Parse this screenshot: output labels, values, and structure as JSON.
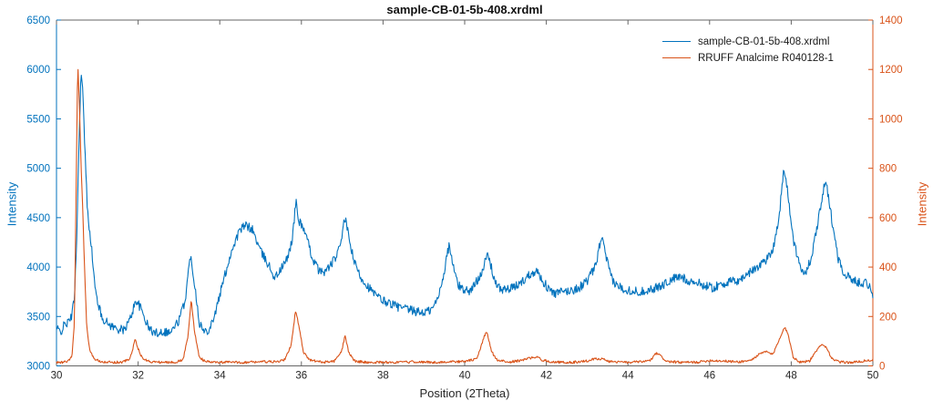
{
  "chart_data": {
    "type": "line",
    "title": "sample-CB-01-5b-408.xrdml",
    "xlabel": "Position (2Theta)",
    "grid": false,
    "x_range": [
      30,
      50
    ],
    "x_ticks": [
      30,
      32,
      34,
      36,
      38,
      40,
      42,
      44,
      46,
      48,
      50
    ],
    "left_axis": {
      "label": "Intensity",
      "range": [
        3000,
        6500
      ],
      "ticks": [
        3000,
        3500,
        4000,
        4500,
        5000,
        5500,
        6000,
        6500
      ],
      "color": "#0072BD"
    },
    "right_axis": {
      "label": "Intensity",
      "range": [
        0,
        1400
      ],
      "ticks": [
        0,
        200,
        400,
        600,
        800,
        1000,
        1200,
        1400
      ],
      "color": "#D95319"
    },
    "legend": {
      "position": "top-right-inside",
      "border": "none"
    },
    "series": [
      {
        "name": "sample-CB-01-5b-408.xrdml",
        "axis": "left",
        "color": "#0072BD",
        "noise": 46,
        "seed": 42,
        "points": [
          [
            30.0,
            3380
          ],
          [
            30.1,
            3340
          ],
          [
            30.2,
            3420
          ],
          [
            30.3,
            3440
          ],
          [
            30.38,
            3520
          ],
          [
            30.44,
            3700
          ],
          [
            30.5,
            4350
          ],
          [
            30.55,
            5250
          ],
          [
            30.6,
            5970
          ],
          [
            30.64,
            5800
          ],
          [
            30.7,
            5150
          ],
          [
            30.76,
            4560
          ],
          [
            30.84,
            4280
          ],
          [
            30.95,
            3760
          ],
          [
            31.1,
            3500
          ],
          [
            31.25,
            3430
          ],
          [
            31.45,
            3380
          ],
          [
            31.65,
            3360
          ],
          [
            31.8,
            3470
          ],
          [
            31.95,
            3670
          ],
          [
            32.1,
            3550
          ],
          [
            32.25,
            3390
          ],
          [
            32.4,
            3330
          ],
          [
            32.6,
            3350
          ],
          [
            32.8,
            3340
          ],
          [
            33.0,
            3460
          ],
          [
            33.15,
            3660
          ],
          [
            33.28,
            4120
          ],
          [
            33.38,
            3850
          ],
          [
            33.5,
            3440
          ],
          [
            33.62,
            3340
          ],
          [
            33.75,
            3380
          ],
          [
            33.9,
            3550
          ],
          [
            34.1,
            3880
          ],
          [
            34.3,
            4180
          ],
          [
            34.5,
            4380
          ],
          [
            34.65,
            4420
          ],
          [
            34.8,
            4380
          ],
          [
            35.0,
            4160
          ],
          [
            35.2,
            4020
          ],
          [
            35.35,
            3890
          ],
          [
            35.5,
            3980
          ],
          [
            35.65,
            4080
          ],
          [
            35.78,
            4290
          ],
          [
            35.87,
            4680
          ],
          [
            35.93,
            4460
          ],
          [
            36.02,
            4430
          ],
          [
            36.12,
            4300
          ],
          [
            36.28,
            4080
          ],
          [
            36.45,
            3950
          ],
          [
            36.6,
            3960
          ],
          [
            36.75,
            4040
          ],
          [
            36.9,
            4140
          ],
          [
            37.0,
            4340
          ],
          [
            37.07,
            4500
          ],
          [
            37.17,
            4280
          ],
          [
            37.3,
            4040
          ],
          [
            37.45,
            3900
          ],
          [
            37.6,
            3820
          ],
          [
            37.8,
            3720
          ],
          [
            38.0,
            3660
          ],
          [
            38.2,
            3630
          ],
          [
            38.4,
            3590
          ],
          [
            38.6,
            3570
          ],
          [
            38.8,
            3550
          ],
          [
            39.0,
            3540
          ],
          [
            39.2,
            3570
          ],
          [
            39.35,
            3690
          ],
          [
            39.5,
            3960
          ],
          [
            39.62,
            4230
          ],
          [
            39.72,
            4000
          ],
          [
            39.85,
            3810
          ],
          [
            40.0,
            3770
          ],
          [
            40.15,
            3760
          ],
          [
            40.3,
            3860
          ],
          [
            40.45,
            3990
          ],
          [
            40.57,
            4130
          ],
          [
            40.68,
            3950
          ],
          [
            40.8,
            3790
          ],
          [
            41.0,
            3770
          ],
          [
            41.2,
            3790
          ],
          [
            41.4,
            3850
          ],
          [
            41.6,
            3930
          ],
          [
            41.75,
            3970
          ],
          [
            41.9,
            3870
          ],
          [
            42.05,
            3780
          ],
          [
            42.2,
            3730
          ],
          [
            42.4,
            3750
          ],
          [
            42.6,
            3760
          ],
          [
            42.8,
            3790
          ],
          [
            43.0,
            3860
          ],
          [
            43.2,
            4000
          ],
          [
            43.35,
            4310
          ],
          [
            43.45,
            4130
          ],
          [
            43.58,
            3900
          ],
          [
            43.7,
            3820
          ],
          [
            43.9,
            3780
          ],
          [
            44.1,
            3760
          ],
          [
            44.3,
            3750
          ],
          [
            44.5,
            3770
          ],
          [
            44.7,
            3790
          ],
          [
            44.9,
            3830
          ],
          [
            45.1,
            3880
          ],
          [
            45.3,
            3900
          ],
          [
            45.5,
            3860
          ],
          [
            45.7,
            3840
          ],
          [
            45.9,
            3810
          ],
          [
            46.1,
            3790
          ],
          [
            46.3,
            3830
          ],
          [
            46.5,
            3850
          ],
          [
            46.7,
            3860
          ],
          [
            46.9,
            3920
          ],
          [
            47.1,
            3980
          ],
          [
            47.25,
            4030
          ],
          [
            47.4,
            4080
          ],
          [
            47.55,
            4180
          ],
          [
            47.7,
            4500
          ],
          [
            47.82,
            5000
          ],
          [
            47.92,
            4740
          ],
          [
            48.05,
            4280
          ],
          [
            48.2,
            4010
          ],
          [
            48.35,
            3950
          ],
          [
            48.5,
            4090
          ],
          [
            48.65,
            4450
          ],
          [
            48.8,
            4800
          ],
          [
            48.87,
            4820
          ],
          [
            49.0,
            4470
          ],
          [
            49.15,
            4090
          ],
          [
            49.3,
            3930
          ],
          [
            49.5,
            3870
          ],
          [
            49.7,
            3840
          ],
          [
            49.85,
            3850
          ],
          [
            50.0,
            3730
          ]
        ]
      },
      {
        "name": "RRUFF Analcime R040128-1",
        "axis": "right",
        "color": "#D95319",
        "noise": 5,
        "seed": 99,
        "points": [
          [
            30.0,
            14
          ],
          [
            30.15,
            14
          ],
          [
            30.3,
            20
          ],
          [
            30.38,
            40
          ],
          [
            30.44,
            180
          ],
          [
            30.48,
            700
          ],
          [
            30.52,
            1230
          ],
          [
            30.56,
            1060
          ],
          [
            30.6,
            820
          ],
          [
            30.64,
            650
          ],
          [
            30.68,
            430
          ],
          [
            30.74,
            160
          ],
          [
            30.82,
            55
          ],
          [
            30.95,
            26
          ],
          [
            31.1,
            18
          ],
          [
            31.3,
            15
          ],
          [
            31.6,
            15
          ],
          [
            31.8,
            28
          ],
          [
            31.93,
            108
          ],
          [
            32.0,
            70
          ],
          [
            32.1,
            30
          ],
          [
            32.3,
            17
          ],
          [
            32.6,
            14
          ],
          [
            32.9,
            15
          ],
          [
            33.1,
            24
          ],
          [
            33.22,
            120
          ],
          [
            33.3,
            268
          ],
          [
            33.38,
            140
          ],
          [
            33.5,
            35
          ],
          [
            33.65,
            17
          ],
          [
            33.9,
            14
          ],
          [
            34.2,
            15
          ],
          [
            34.6,
            14
          ],
          [
            35.0,
            17
          ],
          [
            35.4,
            16
          ],
          [
            35.6,
            26
          ],
          [
            35.75,
            85
          ],
          [
            35.86,
            228
          ],
          [
            35.95,
            150
          ],
          [
            36.05,
            55
          ],
          [
            36.2,
            24
          ],
          [
            36.5,
            15
          ],
          [
            36.8,
            18
          ],
          [
            36.98,
            55
          ],
          [
            37.07,
            122
          ],
          [
            37.16,
            55
          ],
          [
            37.3,
            20
          ],
          [
            37.6,
            14
          ],
          [
            38.0,
            15
          ],
          [
            38.4,
            14
          ],
          [
            38.8,
            17
          ],
          [
            39.2,
            14
          ],
          [
            39.6,
            16
          ],
          [
            40.0,
            18
          ],
          [
            40.3,
            28
          ],
          [
            40.48,
            120
          ],
          [
            40.55,
            138
          ],
          [
            40.65,
            60
          ],
          [
            40.8,
            22
          ],
          [
            41.1,
            16
          ],
          [
            41.4,
            22
          ],
          [
            41.6,
            32
          ],
          [
            41.75,
            36
          ],
          [
            41.9,
            24
          ],
          [
            42.2,
            15
          ],
          [
            42.6,
            14
          ],
          [
            43.0,
            20
          ],
          [
            43.2,
            30
          ],
          [
            43.35,
            28
          ],
          [
            43.55,
            18
          ],
          [
            43.9,
            14
          ],
          [
            44.3,
            16
          ],
          [
            44.55,
            22
          ],
          [
            44.7,
            52
          ],
          [
            44.8,
            40
          ],
          [
            44.95,
            18
          ],
          [
            45.3,
            14
          ],
          [
            45.7,
            15
          ],
          [
            46.0,
            22
          ],
          [
            46.3,
            20
          ],
          [
            46.7,
            16
          ],
          [
            47.0,
            22
          ],
          [
            47.25,
            50
          ],
          [
            47.4,
            58
          ],
          [
            47.55,
            45
          ],
          [
            47.7,
            105
          ],
          [
            47.83,
            158
          ],
          [
            47.93,
            125
          ],
          [
            48.05,
            35
          ],
          [
            48.2,
            16
          ],
          [
            48.45,
            20
          ],
          [
            48.62,
            60
          ],
          [
            48.75,
            92
          ],
          [
            48.88,
            70
          ],
          [
            49.0,
            28
          ],
          [
            49.2,
            15
          ],
          [
            49.5,
            14
          ],
          [
            49.8,
            20
          ],
          [
            50.0,
            24
          ]
        ]
      }
    ]
  },
  "frame": {
    "spine_color": "#666666",
    "tick_label_color": "#262626",
    "title_color": "#111111",
    "background": "#ffffff"
  }
}
